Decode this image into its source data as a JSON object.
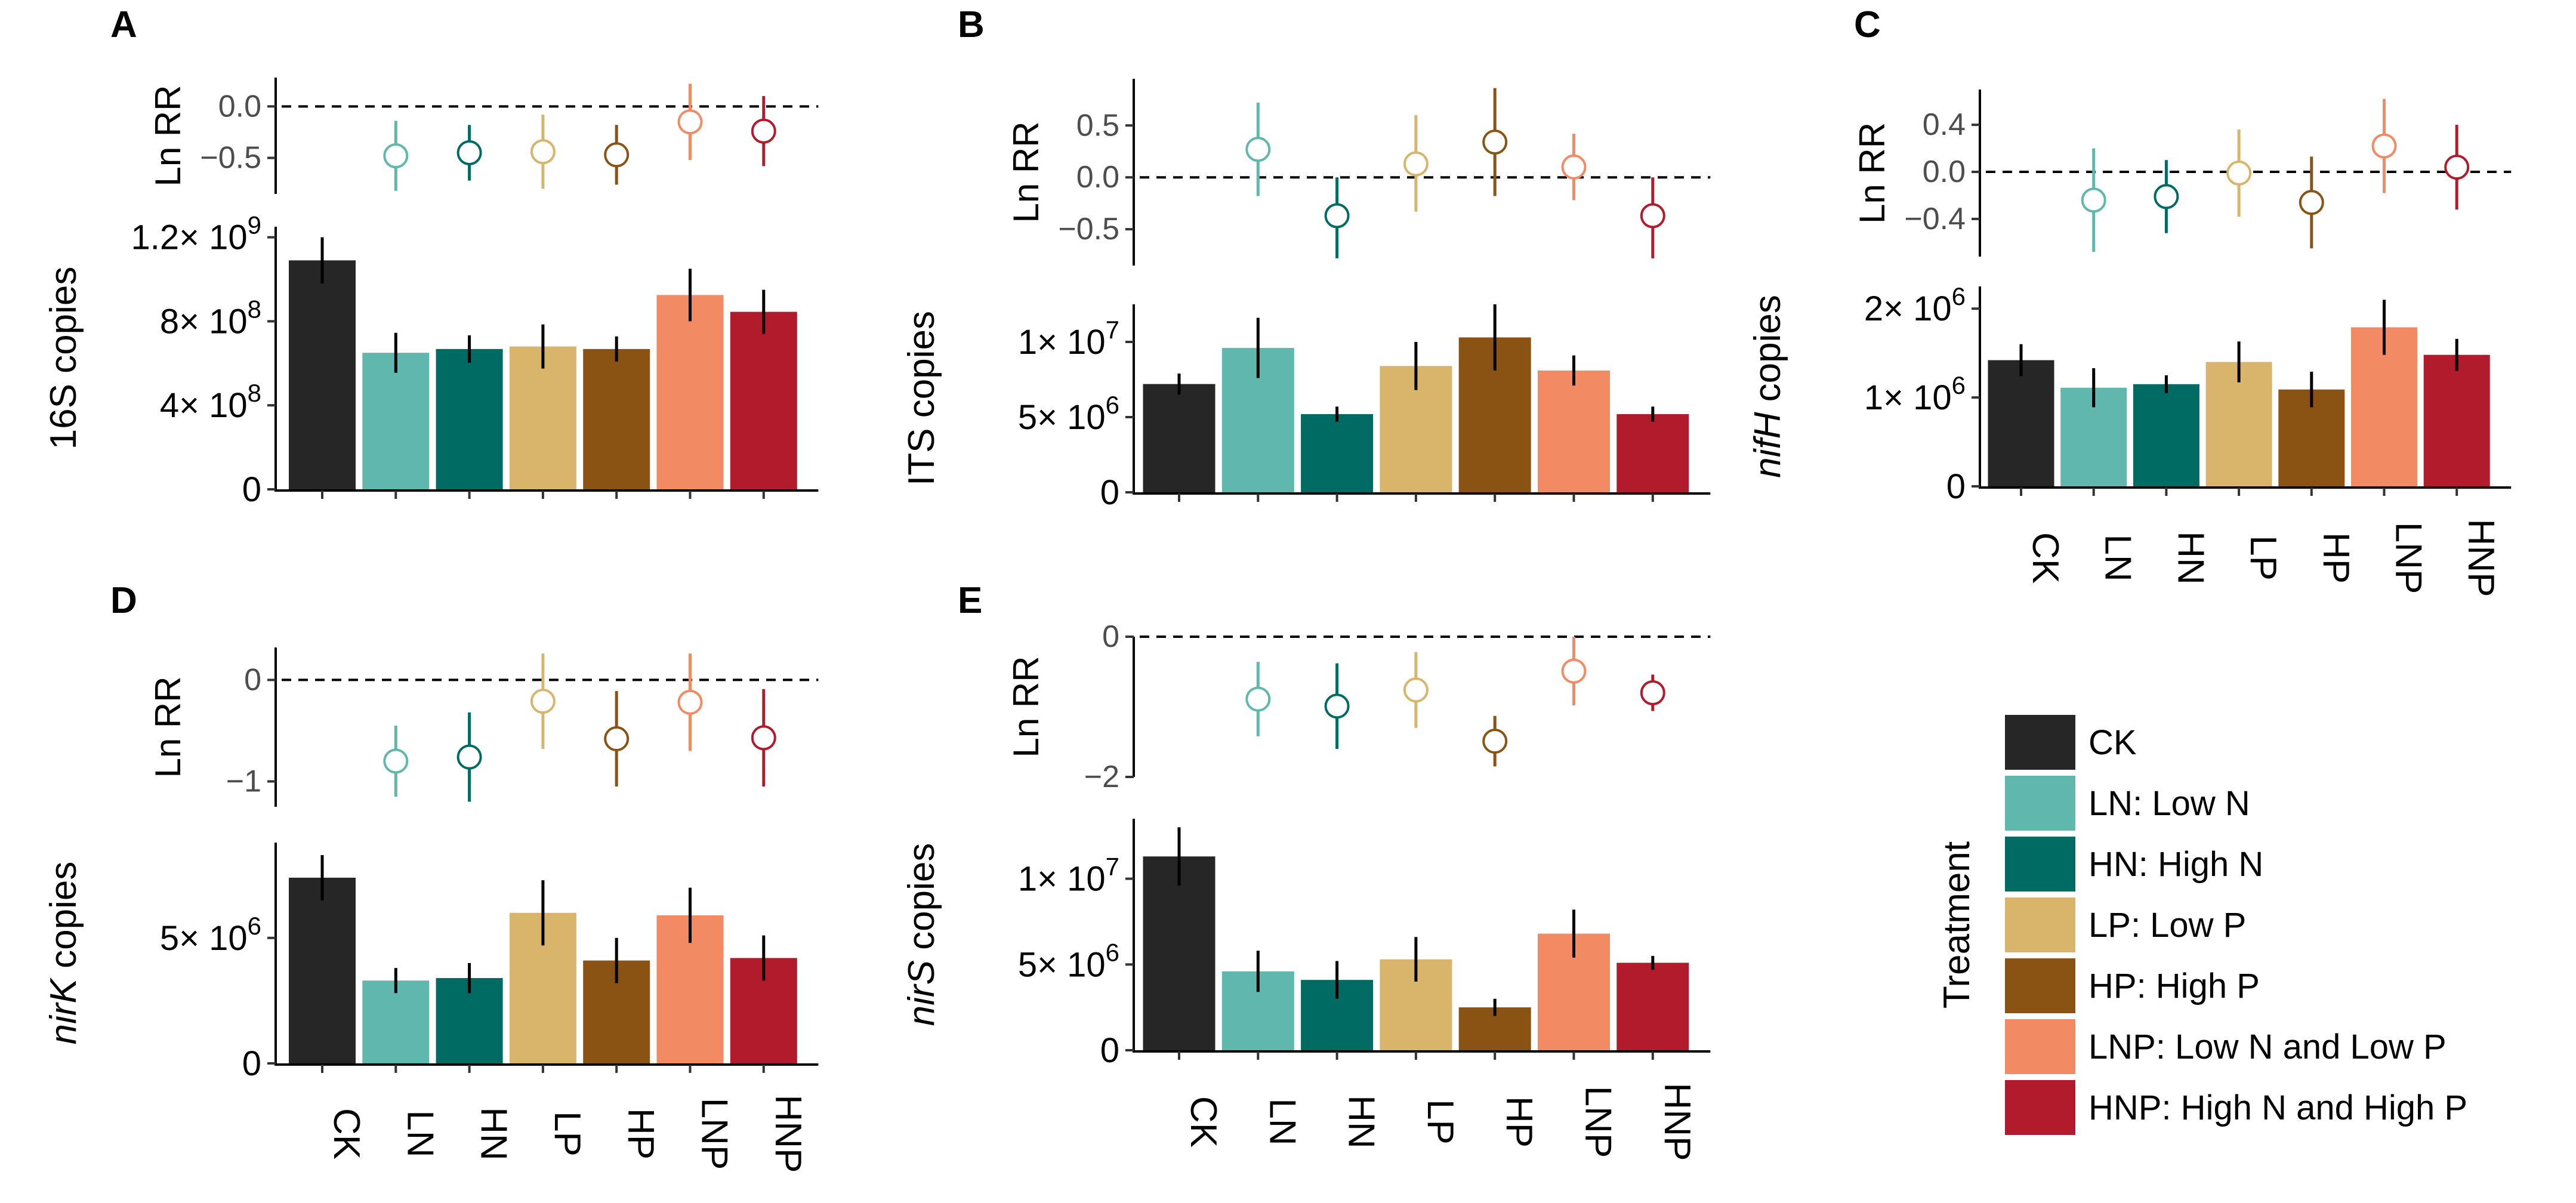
{
  "categories": [
    "CK",
    "LN",
    "HN",
    "LP",
    "HP",
    "LNP",
    "HNP"
  ],
  "colors": [
    "#262626",
    "#5fb7ad",
    "#006b63",
    "#d8b56a",
    "#8b5313",
    "#f28a64",
    "#b21b2c"
  ],
  "lnrr_label": "Ln RR",
  "legend": {
    "title": "Treatment",
    "entries": [
      "CK",
      "LN: Low N",
      "HN: High N",
      "LP: Low P",
      "HP: High P",
      "LNP: Low N and Low P",
      "HNP: High N and High P"
    ]
  },
  "chart_data": [
    {
      "panel": "A",
      "type": "bar",
      "ylabel": "16S copies",
      "ylabel_italic": "",
      "categories": [
        "CK",
        "LN",
        "HN",
        "LP",
        "HP",
        "LNP",
        "HNP"
      ],
      "values": [
        1090000000,
        650000000,
        668000000,
        680000000,
        668000000,
        925000000,
        845000000
      ],
      "errors": [
        110000000,
        95000000,
        65000000,
        105000000,
        60000000,
        125000000,
        105000000
      ],
      "ylim": [
        0,
        1250000000
      ],
      "yticks": [
        {
          "v": 0,
          "label": "0"
        },
        {
          "v": 400000000,
          "label": "4× 10",
          "exp": "8"
        },
        {
          "v": 800000000,
          "label": "8× 10",
          "exp": "8"
        },
        {
          "v": 1200000000,
          "label": "1.2× 10",
          "exp": "9"
        }
      ],
      "show_xlabels": false,
      "lnrr": {
        "values": [
          null,
          -0.48,
          -0.45,
          -0.44,
          -0.47,
          -0.15,
          -0.24
        ],
        "lower": [
          null,
          -0.82,
          -0.72,
          -0.8,
          -0.76,
          -0.52,
          -0.58
        ],
        "upper": [
          null,
          -0.14,
          -0.18,
          -0.08,
          -0.18,
          0.22,
          0.1
        ],
        "ylim": [
          -0.85,
          0.28
        ],
        "yticks": [
          {
            "v": 0.0,
            "label": "0.0"
          },
          {
            "v": -0.5,
            "label": "−0.5"
          }
        ]
      }
    },
    {
      "panel": "B",
      "type": "bar",
      "ylabel": "ITS copies",
      "ylabel_italic": "",
      "categories": [
        "CK",
        "LN",
        "HN",
        "LP",
        "HP",
        "LNP",
        "HNP"
      ],
      "values": [
        7200000,
        9600000,
        5200000,
        8400000,
        10300000,
        8100000,
        5200000
      ],
      "errors": [
        700000,
        2000000,
        500000,
        1600000,
        2200000,
        1000000,
        500000
      ],
      "ylim": [
        0,
        12500000
      ],
      "yticks": [
        {
          "v": 0,
          "label": "0"
        },
        {
          "v": 5000000,
          "label": "5× 10",
          "exp": "6"
        },
        {
          "v": 10000000,
          "label": "1× 10",
          "exp": "7"
        }
      ],
      "show_xlabels": false,
      "lnrr": {
        "values": [
          null,
          0.27,
          -0.37,
          0.13,
          0.34,
          0.1,
          -0.37
        ],
        "lower": [
          null,
          -0.18,
          -0.78,
          -0.33,
          -0.18,
          -0.22,
          -0.78
        ],
        "upper": [
          null,
          0.72,
          0.0,
          0.6,
          0.86,
          0.42,
          0.0
        ],
        "ylim": [
          -0.85,
          0.95
        ],
        "yticks": [
          {
            "v": 0.5,
            "label": "0.5"
          },
          {
            "v": 0.0,
            "label": "0.0"
          },
          {
            "v": -0.5,
            "label": "−0.5"
          }
        ]
      }
    },
    {
      "panel": "C",
      "type": "bar",
      "ylabel": " copies",
      "ylabel_italic": "nifH",
      "categories": [
        "CK",
        "LN",
        "HN",
        "LP",
        "HP",
        "LNP",
        "HNP"
      ],
      "values": [
        1420000,
        1110000,
        1150000,
        1400000,
        1090000,
        1790000,
        1480000
      ],
      "errors": [
        180000,
        220000,
        100000,
        230000,
        200000,
        310000,
        180000
      ],
      "ylim": [
        0,
        2250000
      ],
      "yticks": [
        {
          "v": 0,
          "label": "0"
        },
        {
          "v": 1000000,
          "label": "1× 10",
          "exp": "6"
        },
        {
          "v": 2000000,
          "label": "2× 10",
          "exp": "6"
        }
      ],
      "show_xlabels": true,
      "lnrr": {
        "values": [
          null,
          -0.24,
          -0.21,
          -0.01,
          -0.26,
          0.22,
          0.04
        ],
        "lower": [
          null,
          -0.68,
          -0.52,
          -0.38,
          -0.65,
          -0.18,
          -0.32
        ],
        "upper": [
          null,
          0.2,
          0.1,
          0.36,
          0.13,
          0.62,
          0.4
        ],
        "ylim": [
          -0.72,
          0.7
        ],
        "yticks": [
          {
            "v": 0.4,
            "label": "0.4"
          },
          {
            "v": 0.0,
            "label": "0.0"
          },
          {
            "v": -0.4,
            "label": "−0.4"
          }
        ]
      }
    },
    {
      "panel": "D",
      "type": "bar",
      "ylabel": " copies",
      "ylabel_italic": "nirK",
      "categories": [
        "CK",
        "LN",
        "HN",
        "LP",
        "HP",
        "LNP",
        "HNP"
      ],
      "values": [
        7400000,
        3300000,
        3400000,
        6000000,
        4100000,
        5900000,
        4200000
      ],
      "errors": [
        900000,
        500000,
        600000,
        1300000,
        900000,
        1100000,
        900000
      ],
      "ylim": [
        0,
        8800000
      ],
      "yticks": [
        {
          "v": 0,
          "label": "0"
        },
        {
          "v": 5000000,
          "label": "5× 10",
          "exp": "6"
        }
      ],
      "show_xlabels": true,
      "lnrr": {
        "values": [
          null,
          -0.8,
          -0.76,
          -0.21,
          -0.58,
          -0.22,
          -0.57
        ],
        "lower": [
          null,
          -1.15,
          -1.2,
          -0.68,
          -1.05,
          -0.7,
          -1.05
        ],
        "upper": [
          null,
          -0.45,
          -0.32,
          0.26,
          -0.11,
          0.26,
          -0.09
        ],
        "ylim": [
          -1.25,
          0.32
        ],
        "yticks": [
          {
            "v": 0,
            "label": "0"
          },
          {
            "v": -1,
            "label": "−1"
          }
        ]
      }
    },
    {
      "panel": "E",
      "type": "bar",
      "ylabel": " copies",
      "ylabel_italic": "nirS",
      "categories": [
        "CK",
        "LN",
        "HN",
        "LP",
        "HP",
        "LNP",
        "HNP"
      ],
      "values": [
        11300000,
        4600000,
        4100000,
        5300000,
        2500000,
        6800000,
        5100000
      ],
      "errors": [
        1700000,
        1200000,
        1100000,
        1300000,
        500000,
        1400000,
        400000
      ],
      "ylim": [
        0,
        13500000
      ],
      "yticks": [
        {
          "v": 0,
          "label": "0"
        },
        {
          "v": 5000000,
          "label": "5× 10",
          "exp": "6"
        },
        {
          "v": 10000000,
          "label": "1× 10",
          "exp": "7"
        }
      ],
      "show_xlabels": true,
      "lnrr": {
        "values": [
          null,
          -0.89,
          -0.99,
          -0.76,
          -1.49,
          -0.49,
          -0.8
        ],
        "lower": [
          null,
          -1.42,
          -1.6,
          -1.3,
          -1.85,
          -0.98,
          -1.06
        ],
        "upper": [
          null,
          -0.36,
          -0.38,
          -0.22,
          -1.13,
          0.0,
          -0.54
        ],
        "ylim": [
          -2.0,
          0.0
        ],
        "yticks": [
          {
            "v": 0,
            "label": "0"
          },
          {
            "v": -2,
            "label": "−2"
          }
        ]
      }
    }
  ]
}
